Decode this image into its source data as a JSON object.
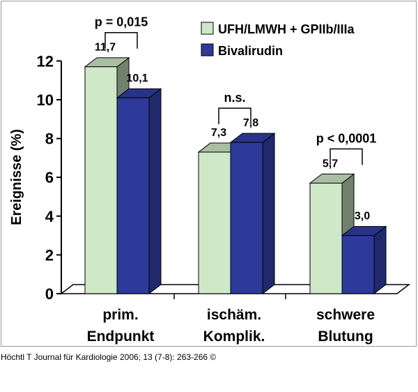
{
  "chart_data": {
    "type": "bar",
    "ylabel": "Ereignisse (%)",
    "ylim": [
      0,
      12
    ],
    "yticks": [
      0,
      2,
      4,
      6,
      8,
      10,
      12
    ],
    "categories": [
      [
        "prim.",
        "Endpunkt"
      ],
      [
        "ischäm.",
        "Komplik."
      ],
      [
        "schwere",
        "Blutung"
      ]
    ],
    "series": [
      {
        "name": "UFH/LMWH + GPIIb/IIIa",
        "values": [
          11.7,
          7.3,
          5.7
        ],
        "labels": [
          "11,7",
          "7,3",
          "5,7"
        ],
        "color": "#cfe8c8"
      },
      {
        "name": "Bivalirudin",
        "values": [
          10.1,
          7.8,
          3.0
        ],
        "labels": [
          "10,1",
          "7,8",
          "3,0"
        ],
        "color": "#2d3a9a"
      }
    ],
    "annotations": [
      "p = 0,015",
      "n.s.",
      "p < 0,0001"
    ],
    "legend": "top-right",
    "grid": false,
    "style": "3d"
  },
  "caption": "Höchtl T Journal für Kardiologie 2006; 13 (7-8): 263-266 ©"
}
